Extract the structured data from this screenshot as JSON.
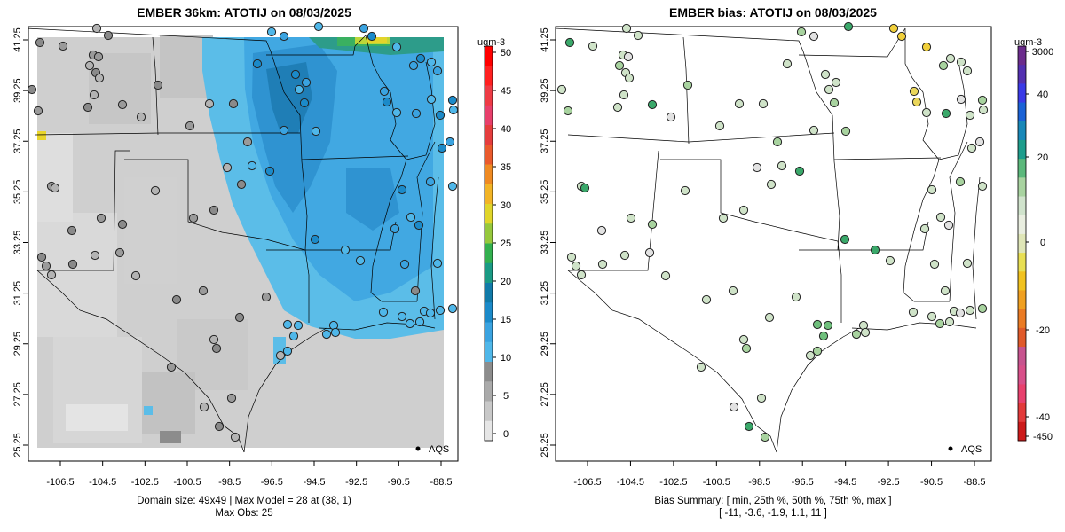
{
  "panels": [
    {
      "title": "EMBER 36km: ATOTIJ on 08/03/2025",
      "caption_line1": "Domain size: 49x49 | Max Model = 28 at (38, 1)",
      "caption_line2": "Max Obs: 25",
      "legend_label": "AQS",
      "colorbar_unit": "ugm-3",
      "colorbar_ticks": [
        "0",
        "5",
        "10",
        "15",
        "20",
        "25",
        "30",
        "35",
        "40",
        "45",
        "50"
      ],
      "colorbar_colors": [
        "#e6e6e6",
        "#c8c8c8",
        "#aaaaaa",
        "#8c8c8c",
        "#4fb7e9",
        "#3aa3e0",
        "#1b8ac9",
        "#117aa8",
        "#1a9a84",
        "#33b04f",
        "#96c83c",
        "#e0d52a",
        "#f2b426",
        "#ef8a22",
        "#ea5a2c",
        "#e53d3d",
        "#e83f6b",
        "#ee3b45",
        "#ff2020",
        "#ff0000"
      ],
      "x_ticks": [
        "-106.5",
        "-104.5",
        "-102.5",
        "-100.5",
        "-98.5",
        "-96.5",
        "-94.5",
        "-92.5",
        "-90.5",
        "-88.5"
      ],
      "y_ticks": [
        "41.25",
        "39.25",
        "37.25",
        "35.25",
        "33.25",
        "31.25",
        "29.25",
        "27.25",
        "25.25"
      ]
    },
    {
      "title": "EMBER bias: ATOTIJ on 08/03/2025",
      "caption_line1": "Bias Summary: [ min, 25th %, 50th %, 75th %, max ]",
      "caption_line2": "[ -11,   -3.6,   -1.9,   1.1,    11 ]",
      "legend_label": "AQS",
      "colorbar_unit": "ugm-3",
      "colorbar_ticks": [
        "3000",
        "40",
        "20",
        "0",
        "-20",
        "-40",
        "-450"
      ],
      "colorbar_colors": [
        "#cc1a1a",
        "#e23a3a",
        "#e8416e",
        "#d8508a",
        "#c7548f",
        "#e05a2a",
        "#ea7b24",
        "#f0a021",
        "#f1c21f",
        "#e8df53",
        "#dfe6b7",
        "#e9eee0",
        "#d0e3cc",
        "#a8d3a0",
        "#5bb87b",
        "#1e9d8c",
        "#1888b8",
        "#1a62d6",
        "#3a3ae6",
        "#5330b0",
        "#6b2c8c"
      ],
      "x_ticks": [
        "-106.5",
        "-104.5",
        "-102.5",
        "-100.5",
        "-98.5",
        "-96.5",
        "-94.5",
        "-92.5",
        "-90.5",
        "-88.5"
      ],
      "y_ticks": [
        "41.25",
        "39.25",
        "37.25",
        "35.25",
        "33.25",
        "31.25",
        "29.25",
        "27.25",
        "25.25"
      ]
    }
  ]
}
